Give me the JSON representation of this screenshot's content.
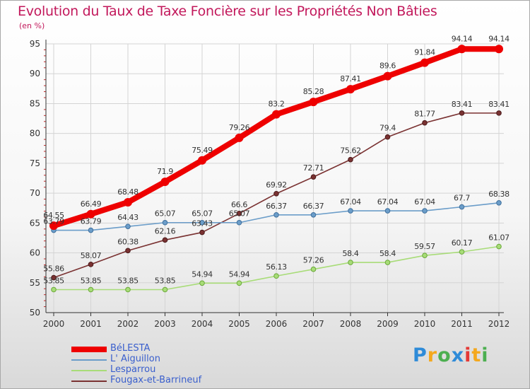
{
  "header": {
    "title": "Evolution du Taux de Taxe Foncière sur les Propriétés Non Bâties",
    "unit": "(en %)"
  },
  "logo": {
    "letters": [
      "P",
      "r",
      "o",
      "x",
      "i",
      "t",
      "i"
    ],
    "colors": [
      "#2e8bd8",
      "#f4a81d",
      "#4caf50",
      "#2e8bd8",
      "#e53935",
      "#f4a81d",
      "#4caf50"
    ]
  },
  "chart_data": {
    "type": "line",
    "x": [
      "2000",
      "2001",
      "2002",
      "2003",
      "2004",
      "2005",
      "2006",
      "2007",
      "2008",
      "2009",
      "2010",
      "2011",
      "2012"
    ],
    "ylim": [
      50,
      95
    ],
    "yticks": [
      50,
      55,
      60,
      65,
      70,
      75,
      80,
      85,
      90,
      95
    ],
    "grid": true,
    "legend_position": "bottom-left",
    "series": [
      {
        "name": "BéLESTA",
        "color": "#ee0000",
        "values": [
          64.55,
          66.49,
          68.48,
          71.9,
          75.49,
          79.26,
          83.2,
          85.28,
          87.41,
          89.6,
          91.84,
          94.14,
          94.14
        ],
        "labels": [
          "64.55",
          "66.49",
          "68.48",
          "71.9",
          "75.49",
          "79.26",
          "83.2",
          "85.28",
          "87.41",
          "89.6",
          "91.84",
          "94.14",
          "94.14"
        ]
      },
      {
        "name": "L' Aiguillon",
        "color": "#6b9dc9",
        "values": [
          63.79,
          63.79,
          64.43,
          65.07,
          65.07,
          65.07,
          66.37,
          66.37,
          67.04,
          67.04,
          67.04,
          67.7,
          68.38
        ],
        "labels": [
          "63.79",
          "63.79",
          "64.43",
          "65.07",
          "65.07",
          "65.07",
          "66.37",
          "66.37",
          "67.04",
          "67.04",
          "67.04",
          "67.7",
          "68.38"
        ]
      },
      {
        "name": "Lesparrou",
        "color": "#a8dc78",
        "values": [
          53.85,
          53.85,
          53.85,
          53.85,
          54.94,
          54.94,
          56.13,
          57.26,
          58.4,
          58.4,
          59.57,
          60.17,
          61.07
        ],
        "labels": [
          "53.85",
          "53.85",
          "53.85",
          "53.85",
          "54.94",
          "54.94",
          "56.13",
          "57.26",
          "58.4",
          "58.4",
          "59.57",
          "60.17",
          "61.07"
        ]
      },
      {
        "name": "Fougax-et-Barrineuf",
        "color": "#7a3232",
        "values": [
          55.86,
          58.07,
          60.38,
          62.16,
          63.43,
          66.6,
          69.92,
          72.71,
          75.62,
          79.4,
          81.77,
          83.41,
          83.41
        ],
        "labels": [
          "55.86",
          "58.07",
          "60.38",
          "62.16",
          "63.43",
          "66.6",
          "69.92",
          "72.71",
          "75.62",
          "79.4",
          "81.77",
          "83.41",
          "83.41"
        ]
      }
    ]
  }
}
